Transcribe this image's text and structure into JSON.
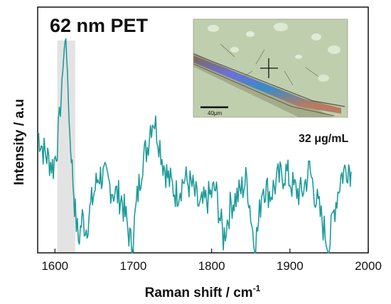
{
  "chart_data": {
    "type": "line",
    "title": "62 nm PET",
    "xlabel": "Raman shift / cm",
    "xlabel_superscript": "-1",
    "ylabel": "Intensity / a.u",
    "annotation": "32 μg/mL",
    "inset_scale_label": "40μm",
    "xlim": [
      1578,
      2000
    ],
    "ylim": [
      0,
      1
    ],
    "x_ticks": [
      1600,
      1700,
      1800,
      1900,
      2000
    ],
    "y_tick_labels_shown": false,
    "highlight_band": [
      1603,
      1626
    ],
    "colors": {
      "line": "#1e9b9b",
      "band": "#e3e3e3",
      "axis": "#111111"
    },
    "series": [
      {
        "x": [
          1578,
          1585,
          1592,
          1598,
          1603,
          1607,
          1610,
          1612,
          1614,
          1616,
          1618,
          1620,
          1623,
          1626,
          1630,
          1635,
          1640,
          1648,
          1656,
          1665,
          1675,
          1685,
          1692,
          1698,
          1705,
          1712,
          1718,
          1722,
          1726,
          1730,
          1734,
          1738,
          1745,
          1755,
          1765,
          1775,
          1785,
          1795,
          1805,
          1815,
          1825,
          1835,
          1845,
          1855,
          1860,
          1865,
          1875,
          1885,
          1895,
          1905,
          1915,
          1925,
          1935,
          1945,
          1950,
          1955,
          1965,
          1975,
          1978
        ],
        "y": [
          0.49,
          0.42,
          0.38,
          0.35,
          0.44,
          0.57,
          0.75,
          0.83,
          0.88,
          0.72,
          0.55,
          0.42,
          0.3,
          0.16,
          0.05,
          0.14,
          0.1,
          0.22,
          0.32,
          0.3,
          0.25,
          0.22,
          0.12,
          0.02,
          0.22,
          0.38,
          0.43,
          0.52,
          0.55,
          0.5,
          0.44,
          0.37,
          0.3,
          0.24,
          0.3,
          0.27,
          0.18,
          0.22,
          0.26,
          0.06,
          0.2,
          0.24,
          0.3,
          0.02,
          0.12,
          0.28,
          0.24,
          0.3,
          0.33,
          0.26,
          0.24,
          0.34,
          0.2,
          0.08,
          0.02,
          0.15,
          0.31,
          0.36,
          0.33
        ]
      }
    ]
  }
}
